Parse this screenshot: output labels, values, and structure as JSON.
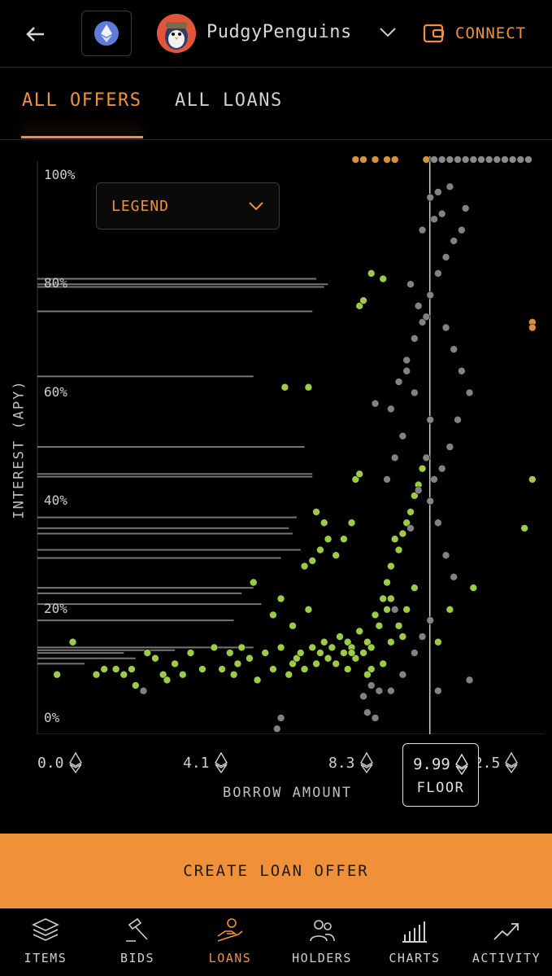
{
  "header": {
    "collection_name": "PudgyPenguins",
    "connect_label": "CONNECT"
  },
  "tabs": [
    {
      "label": "ALL OFFERS",
      "active": true
    },
    {
      "label": "ALL LOANS",
      "active": false
    }
  ],
  "legend": {
    "label": "LEGEND"
  },
  "chart_data": {
    "type": "scatter",
    "ylabel": "INTEREST (APY)",
    "xlabel": "BORROW AMOUNT",
    "y_ticks": [
      "100%",
      "80%",
      "60%",
      "40%",
      "20%",
      "0%"
    ],
    "x_ticks": [
      "0.0",
      "4.1",
      "8.3",
      "12.5"
    ],
    "xlim": [
      0,
      12.5
    ],
    "ylim": [
      0,
      100
    ],
    "floor": {
      "value": "9.99",
      "label": "FLOOR"
    },
    "colors": {
      "offers": "#a6d64a",
      "loans": "#8a8a8a",
      "top": "#e59a3c",
      "lines": "#8a8a8a"
    },
    "series": [
      {
        "name": "offers",
        "points": [
          [
            0.5,
            8
          ],
          [
            0.9,
            14
          ],
          [
            1.5,
            8
          ],
          [
            1.7,
            9
          ],
          [
            2.0,
            9
          ],
          [
            2.2,
            8
          ],
          [
            2.4,
            9
          ],
          [
            2.5,
            6
          ],
          [
            2.8,
            12
          ],
          [
            3.0,
            11
          ],
          [
            3.2,
            8
          ],
          [
            3.3,
            7
          ],
          [
            3.5,
            10
          ],
          [
            3.7,
            8
          ],
          [
            3.9,
            12
          ],
          [
            4.2,
            9
          ],
          [
            4.5,
            13
          ],
          [
            4.7,
            9
          ],
          [
            4.9,
            12
          ],
          [
            5.0,
            8
          ],
          [
            5.1,
            10
          ],
          [
            5.2,
            13
          ],
          [
            5.4,
            11
          ],
          [
            5.6,
            7
          ],
          [
            5.8,
            12
          ],
          [
            6.0,
            9
          ],
          [
            6.2,
            13
          ],
          [
            6.4,
            8
          ],
          [
            6.5,
            10
          ],
          [
            6.6,
            11
          ],
          [
            6.7,
            12
          ],
          [
            6.8,
            9
          ],
          [
            7.0,
            13
          ],
          [
            7.1,
            10
          ],
          [
            7.2,
            12
          ],
          [
            7.3,
            14
          ],
          [
            7.4,
            11
          ],
          [
            7.5,
            13
          ],
          [
            7.6,
            10
          ],
          [
            7.7,
            15
          ],
          [
            7.8,
            12
          ],
          [
            7.9,
            14
          ],
          [
            8.0,
            13
          ],
          [
            8.1,
            11
          ],
          [
            8.2,
            16
          ],
          [
            8.3,
            12
          ],
          [
            8.4,
            14
          ],
          [
            8.5,
            13
          ],
          [
            8.6,
            19
          ],
          [
            8.7,
            17
          ],
          [
            8.8,
            22
          ],
          [
            8.9,
            25
          ],
          [
            9.0,
            28
          ],
          [
            9.1,
            33
          ],
          [
            9.2,
            31
          ],
          [
            9.3,
            34
          ],
          [
            9.4,
            36
          ],
          [
            9.5,
            38
          ],
          [
            9.6,
            41
          ],
          [
            9.7,
            43
          ],
          [
            9.8,
            46
          ],
          [
            7.0,
            29
          ],
          [
            7.6,
            30
          ],
          [
            7.8,
            33
          ],
          [
            8.0,
            36
          ],
          [
            8.1,
            44
          ],
          [
            8.2,
            45
          ],
          [
            6.2,
            22
          ],
          [
            6.8,
            28
          ],
          [
            5.5,
            25
          ],
          [
            6.0,
            19
          ],
          [
            6.5,
            17
          ],
          [
            6.9,
            20
          ],
          [
            9.0,
            22
          ],
          [
            9.4,
            20
          ],
          [
            9.6,
            24
          ],
          [
            8.9,
            20
          ],
          [
            9.2,
            17
          ],
          [
            8.5,
            9
          ],
          [
            8.8,
            10
          ],
          [
            9.0,
            14
          ],
          [
            9.3,
            15
          ],
          [
            8.4,
            8
          ],
          [
            7.9,
            9
          ],
          [
            8.0,
            12
          ],
          [
            6.3,
            61
          ],
          [
            6.9,
            61
          ],
          [
            8.5,
            82
          ],
          [
            8.2,
            76
          ],
          [
            8.3,
            77
          ],
          [
            8.8,
            81
          ],
          [
            7.2,
            31
          ],
          [
            7.4,
            33
          ],
          [
            7.1,
            38
          ],
          [
            7.3,
            36
          ],
          [
            10.2,
            14
          ],
          [
            10.5,
            20
          ],
          [
            11.1,
            24
          ],
          [
            12.6,
            44
          ],
          [
            12.4,
            35
          ]
        ]
      },
      {
        "name": "loans",
        "points": [
          [
            2.7,
            5
          ],
          [
            8.3,
            4
          ],
          [
            8.4,
            1
          ],
          [
            8.5,
            6
          ],
          [
            8.7,
            5
          ],
          [
            9.0,
            5
          ],
          [
            9.3,
            8
          ],
          [
            9.6,
            12
          ],
          [
            9.8,
            15
          ],
          [
            10.0,
            18
          ],
          [
            9.1,
            20
          ],
          [
            9.5,
            35
          ],
          [
            9.7,
            42
          ],
          [
            9.9,
            48
          ],
          [
            10.0,
            55
          ],
          [
            9.2,
            62
          ],
          [
            9.4,
            66
          ],
          [
            9.6,
            70
          ],
          [
            9.8,
            73
          ],
          [
            10.0,
            78
          ],
          [
            10.2,
            82
          ],
          [
            10.4,
            85
          ],
          [
            10.6,
            88
          ],
          [
            10.8,
            90
          ],
          [
            10.9,
            94
          ],
          [
            10.0,
            96
          ],
          [
            10.2,
            97
          ],
          [
            10.5,
            98
          ],
          [
            9.8,
            90
          ],
          [
            10.1,
            92
          ],
          [
            10.3,
            93
          ],
          [
            9.5,
            80
          ],
          [
            9.7,
            76
          ],
          [
            9.9,
            74
          ],
          [
            10.4,
            72
          ],
          [
            10.6,
            68
          ],
          [
            10.8,
            64
          ],
          [
            11.0,
            60
          ],
          [
            10.7,
            55
          ],
          [
            10.5,
            50
          ],
          [
            10.3,
            46
          ],
          [
            10.1,
            44
          ],
          [
            9.3,
            52
          ],
          [
            9.1,
            48
          ],
          [
            9.0,
            57
          ],
          [
            9.6,
            60
          ],
          [
            9.4,
            64
          ],
          [
            8.6,
            58
          ],
          [
            8.9,
            44
          ],
          [
            10.0,
            40
          ],
          [
            10.2,
            36
          ],
          [
            10.4,
            30
          ],
          [
            10.6,
            26
          ],
          [
            6.1,
            -2
          ],
          [
            6.2,
            0
          ],
          [
            8.6,
            0
          ],
          [
            10.2,
            5
          ],
          [
            11.0,
            7
          ]
        ]
      },
      {
        "name": "top",
        "points": [
          [
            8.1,
            103
          ],
          [
            8.3,
            103
          ],
          [
            8.6,
            103
          ],
          [
            8.9,
            103
          ],
          [
            9.1,
            103
          ],
          [
            9.9,
            103
          ],
          [
            12.6,
            73
          ],
          [
            12.6,
            72
          ]
        ]
      }
    ],
    "top_gray_points": [
      [
        10.1,
        103
      ],
      [
        10.3,
        103
      ],
      [
        10.5,
        103
      ],
      [
        10.7,
        103
      ],
      [
        10.9,
        103
      ],
      [
        11.1,
        103
      ],
      [
        11.3,
        103
      ],
      [
        11.5,
        103
      ],
      [
        11.7,
        103
      ],
      [
        11.9,
        103
      ],
      [
        12.1,
        103
      ],
      [
        12.3,
        103
      ],
      [
        12.5,
        103
      ]
    ],
    "offer_lines": [
      {
        "y": 81,
        "to": 7.1
      },
      {
        "y": 80,
        "to": 7.4
      },
      {
        "y": 79.5,
        "to": 7.3
      },
      {
        "y": 75,
        "to": 7.0
      },
      {
        "y": 63,
        "to": 5.5
      },
      {
        "y": 50,
        "to": 6.8
      },
      {
        "y": 45,
        "to": 7.0
      },
      {
        "y": 44.5,
        "to": 7.0
      },
      {
        "y": 37,
        "to": 6.6
      },
      {
        "y": 35,
        "to": 6.4
      },
      {
        "y": 34,
        "to": 6.5
      },
      {
        "y": 31,
        "to": 6.7
      },
      {
        "y": 29.5,
        "to": 6.2
      },
      {
        "y": 24,
        "to": 5.5
      },
      {
        "y": 23,
        "to": 5.2
      },
      {
        "y": 21,
        "to": 5.7
      },
      {
        "y": 18,
        "to": 5.0
      },
      {
        "y": 13,
        "to": 5.5
      },
      {
        "y": 12.5,
        "to": 3.5
      },
      {
        "y": 12,
        "to": 2.2
      },
      {
        "y": 11,
        "to": 2.5
      },
      {
        "y": 10,
        "to": 1.2
      }
    ]
  },
  "primary_action": {
    "label": "CREATE LOAN OFFER"
  },
  "nav": [
    {
      "label": "ITEMS",
      "active": false
    },
    {
      "label": "BIDS",
      "active": false
    },
    {
      "label": "LOANS",
      "active": true
    },
    {
      "label": "HOLDERS",
      "active": false
    },
    {
      "label": "CHARTS",
      "active": false
    },
    {
      "label": "ACTIVITY",
      "active": false
    }
  ]
}
